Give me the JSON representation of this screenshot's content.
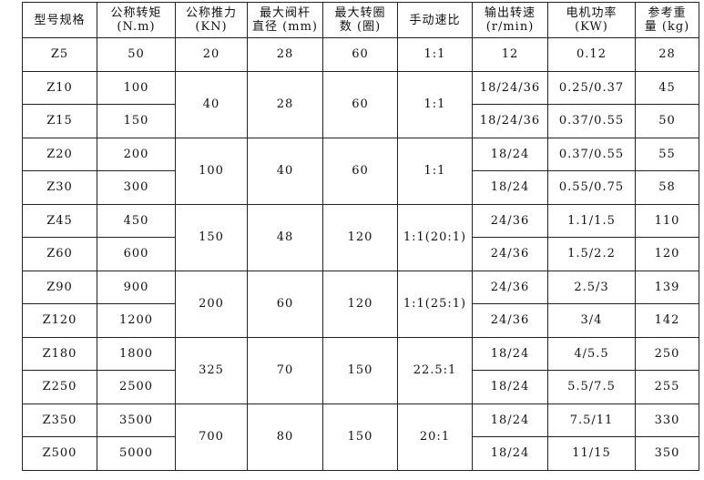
{
  "headers": [
    {
      "l1": "型号规格",
      "l2": ""
    },
    {
      "l1": "公称转矩",
      "l2": "(N.m)"
    },
    {
      "l1": "公称推力",
      "l2": "(KN)"
    },
    {
      "l1": "最大阀杆",
      "l2": "直径 (mm)"
    },
    {
      "l1": "最大转圈",
      "l2": "数 (圈)"
    },
    {
      "l1": "手动速比",
      "l2": ""
    },
    {
      "l1": "输出转速",
      "l2": "(r/min)"
    },
    {
      "l1": "电机功率",
      "l2": "(KW)"
    },
    {
      "l1": "参考重",
      "l2": "量 (kg)"
    }
  ],
  "groups": [
    {
      "thrust": "20",
      "stem": "28",
      "turns": "60",
      "ratio": "1:1",
      "rows": [
        [
          "Z5",
          "50",
          "12",
          "0.12",
          "28"
        ]
      ]
    },
    {
      "thrust": "40",
      "stem": "28",
      "turns": "60",
      "ratio": "1:1",
      "rows": [
        [
          "Z10",
          "100",
          "18/24/36",
          "0.25/0.37",
          "45"
        ],
        [
          "Z15",
          "150",
          "18/24/36",
          "0.37/0.55",
          "50"
        ]
      ]
    },
    {
      "thrust": "100",
      "stem": "40",
      "turns": "60",
      "ratio": "1:1",
      "rows": [
        [
          "Z20",
          "200",
          "18/24",
          "0.37/0.55",
          "55"
        ],
        [
          "Z30",
          "300",
          "18/24",
          "0.55/0.75",
          "58"
        ]
      ]
    },
    {
      "thrust": "150",
      "stem": "48",
      "turns": "120",
      "ratio": "1:1(20:1)",
      "rows": [
        [
          "Z45",
          "450",
          "24/36",
          "1.1/1.5",
          "110"
        ],
        [
          "Z60",
          "600",
          "24/36",
          "1.5/2.2",
          "120"
        ]
      ]
    },
    {
      "thrust": "200",
      "stem": "60",
      "turns": "120",
      "ratio": "1:1(25:1)",
      "rows": [
        [
          "Z90",
          "900",
          "24/36",
          "2.5/3",
          "139"
        ],
        [
          "Z120",
          "1200",
          "24/36",
          "3/4",
          "142"
        ]
      ]
    },
    {
      "thrust": "325",
      "stem": "70",
      "turns": "150",
      "ratio": "22.5:1",
      "rows": [
        [
          "Z180",
          "1800",
          "18/24",
          "4/5.5",
          "250"
        ],
        [
          "Z250",
          "2500",
          "18/24",
          "5.5/7.5",
          "255"
        ]
      ]
    },
    {
      "thrust": "700",
      "stem": "80",
      "turns": "150",
      "ratio": "20:1",
      "rows": [
        [
          "Z350",
          "3500",
          "18/24",
          "7.5/11",
          "330"
        ],
        [
          "Z500",
          "5000",
          "18/24",
          "11/15",
          "350"
        ]
      ]
    }
  ]
}
